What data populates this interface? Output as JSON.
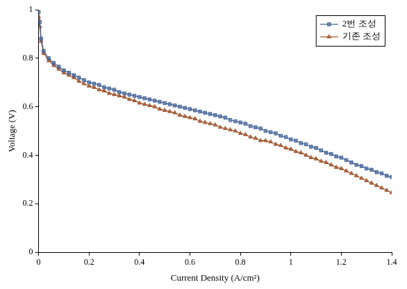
{
  "chart_data": {
    "type": "line",
    "x_label": "Current Density (A/cm²)",
    "y_label": "Voltage (V)",
    "x": [
      0,
      0.005,
      0.01,
      0.02,
      0.04,
      0.06,
      0.08,
      0.1,
      0.12,
      0.14,
      0.16,
      0.18,
      0.2,
      0.22,
      0.24,
      0.26,
      0.28,
      0.3,
      0.32,
      0.34,
      0.36,
      0.38,
      0.4,
      0.42,
      0.44,
      0.46,
      0.48,
      0.5,
      0.52,
      0.54,
      0.56,
      0.58,
      0.6,
      0.62,
      0.64,
      0.66,
      0.68,
      0.7,
      0.72,
      0.74,
      0.76,
      0.78,
      0.8,
      0.82,
      0.84,
      0.86,
      0.88,
      0.9,
      0.92,
      0.94,
      0.96,
      0.98,
      1.0,
      1.02,
      1.04,
      1.06,
      1.08,
      1.1,
      1.12,
      1.14,
      1.16,
      1.18,
      1.2,
      1.22,
      1.24,
      1.26,
      1.28,
      1.3,
      1.32,
      1.34,
      1.36,
      1.38,
      1.4
    ],
    "series": [
      {
        "name": "2번 조성",
        "color": "#3f5f95",
        "marker": "square",
        "line_style": "solid",
        "values": [
          0.99,
          0.95,
          0.88,
          0.83,
          0.8,
          0.78,
          0.765,
          0.75,
          0.74,
          0.73,
          0.72,
          0.71,
          0.7,
          0.695,
          0.69,
          0.68,
          0.675,
          0.67,
          0.66,
          0.655,
          0.65,
          0.645,
          0.64,
          0.635,
          0.63,
          0.625,
          0.62,
          0.615,
          0.61,
          0.605,
          0.6,
          0.595,
          0.59,
          0.585,
          0.58,
          0.575,
          0.57,
          0.565,
          0.56,
          0.555,
          0.545,
          0.54,
          0.535,
          0.53,
          0.52,
          0.515,
          0.51,
          0.5,
          0.495,
          0.49,
          0.48,
          0.475,
          0.465,
          0.46,
          0.45,
          0.445,
          0.435,
          0.43,
          0.42,
          0.41,
          0.405,
          0.395,
          0.39,
          0.38,
          0.37,
          0.36,
          0.355,
          0.345,
          0.34,
          0.33,
          0.325,
          0.315,
          0.31
        ]
      },
      {
        "name": "기존 조성",
        "color": "#9a4a20",
        "marker": "triangle",
        "line_style": "solid",
        "values": [
          0.97,
          0.93,
          0.87,
          0.82,
          0.79,
          0.77,
          0.755,
          0.74,
          0.73,
          0.72,
          0.705,
          0.695,
          0.685,
          0.68,
          0.67,
          0.665,
          0.655,
          0.65,
          0.645,
          0.64,
          0.63,
          0.625,
          0.615,
          0.61,
          0.605,
          0.6,
          0.59,
          0.585,
          0.58,
          0.575,
          0.565,
          0.56,
          0.555,
          0.55,
          0.54,
          0.535,
          0.53,
          0.525,
          0.515,
          0.51,
          0.505,
          0.5,
          0.49,
          0.485,
          0.475,
          0.47,
          0.46,
          0.46,
          0.455,
          0.445,
          0.44,
          0.43,
          0.425,
          0.415,
          0.41,
          0.4,
          0.39,
          0.385,
          0.375,
          0.37,
          0.36,
          0.35,
          0.345,
          0.335,
          0.325,
          0.315,
          0.305,
          0.295,
          0.285,
          0.275,
          0.265,
          0.255,
          0.245
        ]
      }
    ],
    "xlim": [
      0,
      1.4
    ],
    "xticks": [
      0,
      0.2,
      0.4,
      0.6,
      0.8,
      1,
      1.2,
      1.4
    ],
    "ylim": [
      0,
      1
    ],
    "yticks": [
      0,
      0.2,
      0.4,
      0.6,
      0.8,
      1
    ],
    "grid": false,
    "legend": "upper right"
  }
}
